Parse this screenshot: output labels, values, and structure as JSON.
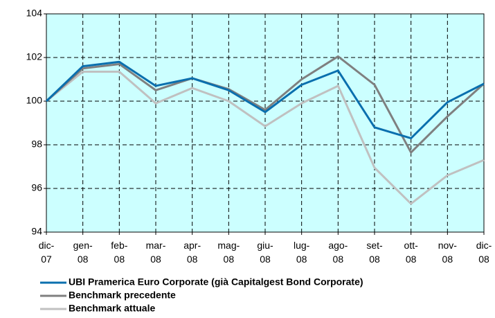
{
  "chart_data": {
    "type": "line",
    "categories": [
      "dic-07",
      "gen-08",
      "feb-08",
      "mar-08",
      "apr-08",
      "mag-08",
      "giu-08",
      "lug-08",
      "ago-08",
      "set-08",
      "ott-08",
      "nov-08",
      "dic-08"
    ],
    "series": [
      {
        "name": "UBI Pramerica Euro Corporate (già Capitalgest Bond Corporate)",
        "color": "#0a6fae",
        "values": [
          100,
          101.6,
          101.8,
          100.7,
          101.05,
          100.5,
          99.5,
          100.75,
          101.4,
          98.8,
          98.3,
          99.95,
          100.8
        ]
      },
      {
        "name": "Benchmark precedente",
        "color": "#7f7f7f",
        "values": [
          100,
          101.5,
          101.7,
          100.5,
          101.05,
          100.55,
          99.6,
          101,
          102.05,
          100.75,
          97.65,
          99.3,
          100.8
        ]
      },
      {
        "name": "Benchmark attuale",
        "color": "#c0c0c0",
        "values": [
          100,
          101.35,
          101.35,
          99.9,
          100.6,
          100,
          98.85,
          99.9,
          100.7,
          96.95,
          95.3,
          96.6,
          97.3
        ]
      }
    ],
    "ylim": [
      94,
      104
    ],
    "yticks": [
      94,
      96,
      98,
      100,
      102,
      104
    ],
    "grid": true,
    "plot_background": "#ccffff"
  }
}
